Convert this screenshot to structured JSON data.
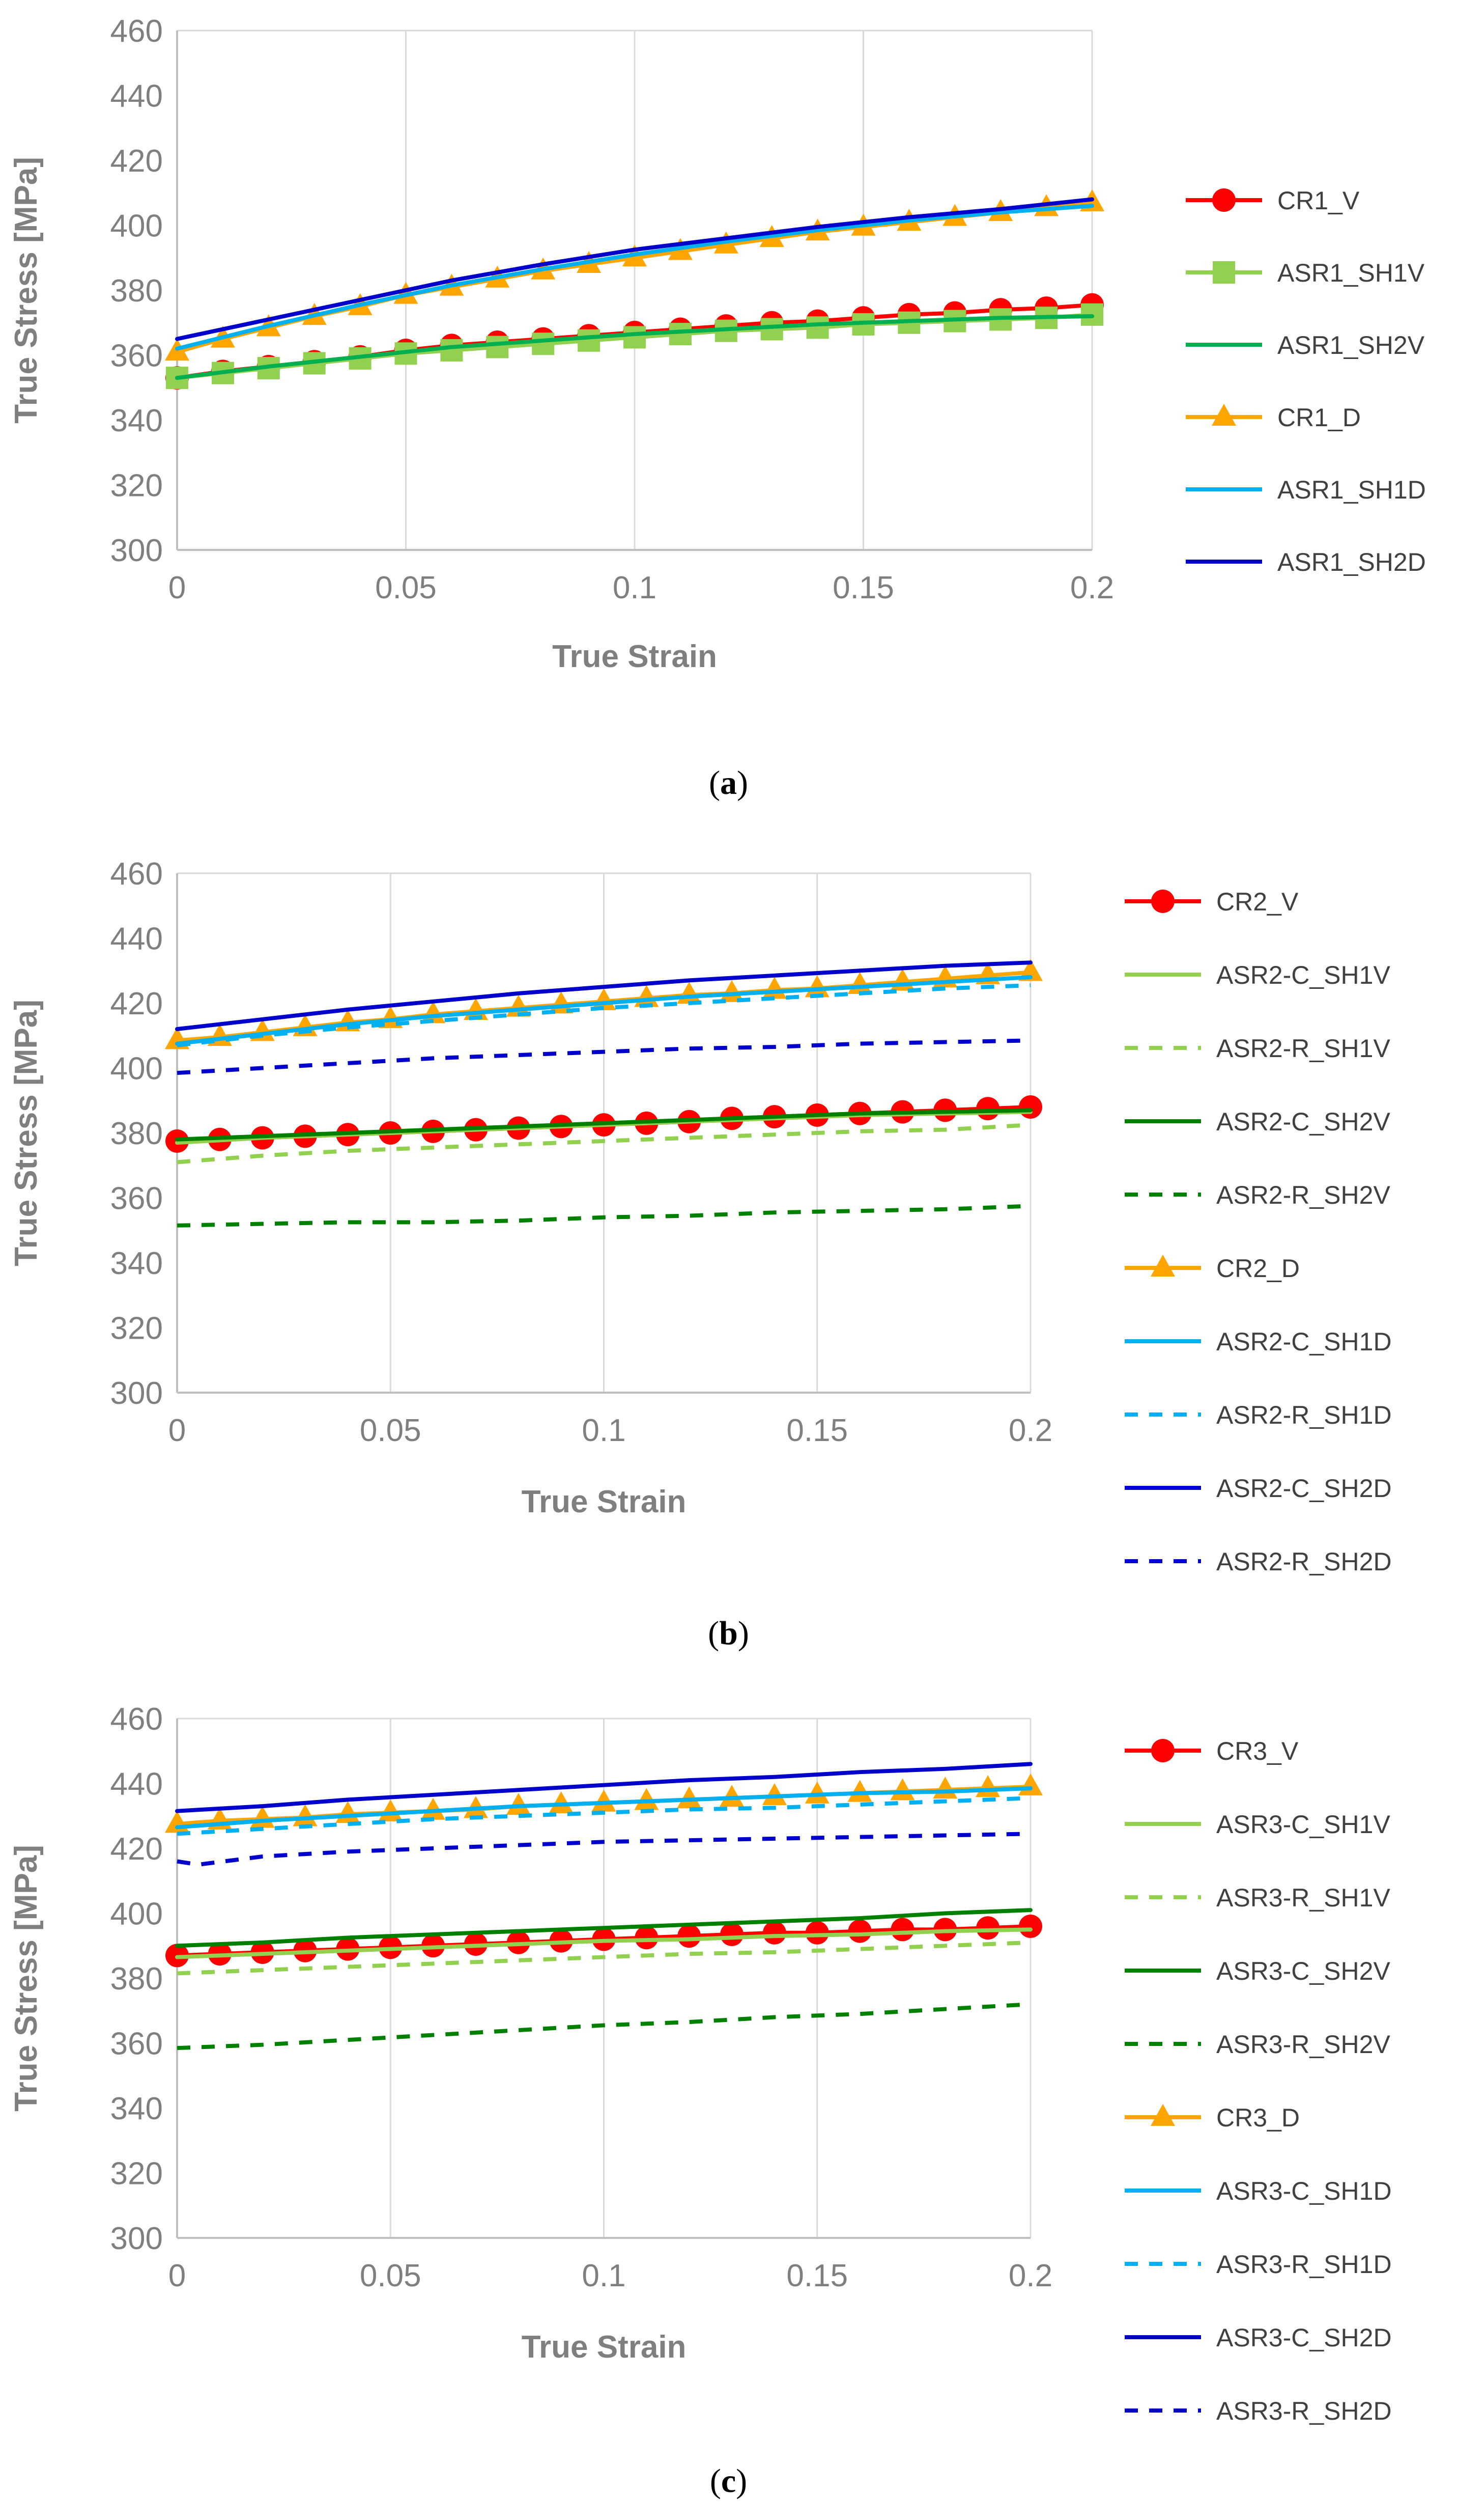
{
  "chart_data": [
    {
      "type": "line",
      "panel_label": "a",
      "xlabel": "True Strain",
      "ylabel": "True Stress [MPa]",
      "xlim": [
        0,
        0.2
      ],
      "ylim": [
        300,
        460
      ],
      "x_ticks": [
        "0",
        "0.05",
        "0.1",
        "0.15",
        "0.2"
      ],
      "y_ticks": [
        "300",
        "320",
        "340",
        "360",
        "380",
        "400",
        "420",
        "440",
        "460"
      ],
      "grid": "vertical",
      "legend_position": "right",
      "series": [
        {
          "name": "CR1_V",
          "color": "#ff0000",
          "dash": "solid",
          "marker": "circle",
          "x": [
            0,
            0.01,
            0.02,
            0.03,
            0.04,
            0.05,
            0.06,
            0.07,
            0.08,
            0.09,
            0.1,
            0.11,
            0.12,
            0.13,
            0.14,
            0.15,
            0.16,
            0.17,
            0.18,
            0.19,
            0.2
          ],
          "y": [
            353,
            355,
            356.5,
            358,
            359.5,
            361.5,
            363,
            364,
            365,
            366,
            367,
            368,
            369,
            370,
            370.5,
            371.5,
            372.5,
            373,
            374,
            374.5,
            375.5
          ]
        },
        {
          "name": "ASR1_SH1V",
          "color": "#92d050",
          "dash": "solid",
          "marker": "square",
          "x": [
            0,
            0.01,
            0.02,
            0.03,
            0.04,
            0.05,
            0.06,
            0.07,
            0.08,
            0.09,
            0.1,
            0.11,
            0.12,
            0.13,
            0.14,
            0.15,
            0.16,
            0.17,
            0.18,
            0.19,
            0.2
          ],
          "y": [
            353,
            354.5,
            356,
            357.5,
            359,
            360.5,
            361.5,
            362.5,
            363.5,
            364.5,
            365.5,
            366.5,
            367.5,
            368,
            368.5,
            369.5,
            370,
            370.5,
            371,
            371.5,
            372.5
          ]
        },
        {
          "name": "ASR1_SH2V",
          "color": "#00b050",
          "dash": "solid",
          "marker": "none",
          "x": [
            0,
            0.02,
            0.04,
            0.06,
            0.08,
            0.1,
            0.12,
            0.14,
            0.16,
            0.18,
            0.2
          ],
          "y": [
            353,
            356.5,
            359.5,
            362.5,
            364.5,
            366.5,
            368,
            369.5,
            370.5,
            371.5,
            372
          ]
        },
        {
          "name": "CR1_D",
          "color": "#ffa500",
          "dash": "solid",
          "marker": "triangle",
          "x": [
            0,
            0.01,
            0.02,
            0.03,
            0.04,
            0.05,
            0.06,
            0.07,
            0.08,
            0.09,
            0.1,
            0.11,
            0.12,
            0.13,
            0.14,
            0.15,
            0.16,
            0.17,
            0.18,
            0.19,
            0.2
          ],
          "y": [
            361,
            365,
            368.5,
            372,
            375,
            378.5,
            381,
            383.5,
            386,
            388,
            390,
            392,
            394,
            396,
            398,
            399.5,
            401,
            402.5,
            404,
            405.5,
            407
          ]
        },
        {
          "name": "ASR1_SH1D",
          "color": "#00b0f0",
          "dash": "solid",
          "marker": "none",
          "x": [
            0,
            0.02,
            0.04,
            0.06,
            0.08,
            0.1,
            0.12,
            0.14,
            0.16,
            0.18,
            0.2
          ],
          "y": [
            362,
            369,
            375.5,
            381.5,
            386.5,
            391,
            395,
            398.5,
            401.5,
            404,
            406
          ]
        },
        {
          "name": "ASR1_SH2D",
          "color": "#0000cd",
          "dash": "solid",
          "marker": "none",
          "x": [
            0,
            0.02,
            0.04,
            0.06,
            0.08,
            0.1,
            0.12,
            0.14,
            0.16,
            0.18,
            0.2
          ],
          "y": [
            365,
            371,
            377,
            383,
            388,
            392.5,
            396,
            399.5,
            402.5,
            405,
            408
          ]
        }
      ]
    },
    {
      "type": "line",
      "panel_label": "b",
      "xlabel": "True Strain",
      "ylabel": "True Stress [MPa]",
      "xlim": [
        0,
        0.2
      ],
      "ylim": [
        300,
        460
      ],
      "x_ticks": [
        "0",
        "0.05",
        "0.1",
        "0.15",
        "0.2"
      ],
      "y_ticks": [
        "300",
        "320",
        "340",
        "360",
        "380",
        "400",
        "420",
        "440",
        "460"
      ],
      "grid": "vertical",
      "legend_position": "right",
      "series": [
        {
          "name": "CR2_V",
          "color": "#ff0000",
          "dash": "solid",
          "marker": "circle",
          "x": [
            0,
            0.01,
            0.02,
            0.03,
            0.04,
            0.05,
            0.06,
            0.07,
            0.08,
            0.09,
            0.1,
            0.11,
            0.12,
            0.13,
            0.14,
            0.15,
            0.16,
            0.17,
            0.18,
            0.19,
            0.2
          ],
          "y": [
            377.5,
            378,
            378.5,
            379,
            379.5,
            380,
            380.5,
            381,
            381.5,
            382,
            382.5,
            383,
            383.5,
            384.5,
            385,
            385.5,
            386,
            386.5,
            387,
            387.5,
            388
          ]
        },
        {
          "name": "ASR2-C_SH1V",
          "color": "#92d050",
          "dash": "solid",
          "marker": "none",
          "x": [
            0,
            0.02,
            0.04,
            0.06,
            0.08,
            0.1,
            0.12,
            0.14,
            0.16,
            0.18,
            0.2
          ],
          "y": [
            377,
            378.5,
            379.5,
            380.5,
            381.5,
            382.5,
            383.5,
            384.5,
            385.5,
            386,
            386.5
          ]
        },
        {
          "name": "ASR2-R_SH1V",
          "color": "#92d050",
          "dash": "dashed",
          "marker": "none",
          "x": [
            0,
            0.02,
            0.04,
            0.06,
            0.08,
            0.1,
            0.12,
            0.14,
            0.16,
            0.18,
            0.2
          ],
          "y": [
            371,
            373,
            374.5,
            375.5,
            376.5,
            377.5,
            378.5,
            379.5,
            380.5,
            381,
            382.5
          ]
        },
        {
          "name": "ASR2-C_SH2V",
          "color": "#008000",
          "dash": "solid",
          "marker": "none",
          "x": [
            0,
            0.02,
            0.04,
            0.06,
            0.08,
            0.1,
            0.12,
            0.14,
            0.16,
            0.18,
            0.2
          ],
          "y": [
            378,
            379,
            380,
            381,
            382,
            383,
            384,
            385,
            386,
            386.5,
            387
          ]
        },
        {
          "name": "ASR2-R_SH2V",
          "color": "#008000",
          "dash": "dashed",
          "marker": "none",
          "x": [
            0,
            0.02,
            0.04,
            0.06,
            0.08,
            0.1,
            0.12,
            0.14,
            0.16,
            0.18,
            0.2
          ],
          "y": [
            351.5,
            352,
            352.5,
            352.5,
            353,
            354,
            354.5,
            355.5,
            356,
            356.5,
            357.5
          ]
        },
        {
          "name": "CR2_D",
          "color": "#ffa500",
          "dash": "solid",
          "marker": "triangle",
          "x": [
            0,
            0.01,
            0.02,
            0.03,
            0.04,
            0.05,
            0.06,
            0.07,
            0.08,
            0.09,
            0.1,
            0.11,
            0.12,
            0.13,
            0.14,
            0.15,
            0.16,
            0.17,
            0.18,
            0.19,
            0.2
          ],
          "y": [
            408.5,
            409.5,
            411,
            412.5,
            414,
            415,
            416.5,
            417.5,
            418.5,
            419.5,
            420.5,
            421.5,
            422.5,
            423,
            424,
            424.5,
            425.5,
            426.5,
            427.5,
            428.5,
            429.5
          ]
        },
        {
          "name": "ASR2-C_SH1D",
          "color": "#00b0f0",
          "dash": "solid",
          "marker": "none",
          "x": [
            0,
            0.02,
            0.04,
            0.06,
            0.08,
            0.1,
            0.12,
            0.14,
            0.16,
            0.18,
            0.2
          ],
          "y": [
            407.5,
            410.5,
            413.5,
            416,
            418,
            420,
            422,
            423.5,
            425,
            426.5,
            428
          ]
        },
        {
          "name": "ASR2-R_SH1D",
          "color": "#00b0f0",
          "dash": "dashed",
          "marker": "none",
          "x": [
            0,
            0.02,
            0.04,
            0.06,
            0.08,
            0.1,
            0.12,
            0.14,
            0.16,
            0.18,
            0.2
          ],
          "y": [
            407,
            410,
            412.5,
            414.5,
            416.5,
            418.5,
            420,
            421.5,
            423,
            424.5,
            425.5
          ]
        },
        {
          "name": "ASR2-C_SH2D",
          "color": "#0000cd",
          "dash": "solid",
          "marker": "none",
          "x": [
            0,
            0.02,
            0.04,
            0.06,
            0.08,
            0.1,
            0.12,
            0.14,
            0.16,
            0.18,
            0.2
          ],
          "y": [
            412,
            415,
            418,
            420.5,
            423,
            425,
            427,
            428.5,
            430,
            431.5,
            432.5
          ]
        },
        {
          "name": "ASR2-R_SH2D",
          "color": "#0000cd",
          "dash": "dashed",
          "marker": "none",
          "x": [
            0,
            0.02,
            0.04,
            0.06,
            0.08,
            0.1,
            0.12,
            0.14,
            0.16,
            0.18,
            0.2
          ],
          "y": [
            398.5,
            400,
            401.5,
            403,
            404,
            405,
            406,
            406.5,
            407.5,
            408,
            408.5
          ]
        }
      ]
    },
    {
      "type": "line",
      "panel_label": "c",
      "xlabel": "True Strain",
      "ylabel": "True Stress [MPa]",
      "xlim": [
        0,
        0.2
      ],
      "ylim": [
        300,
        460
      ],
      "x_ticks": [
        "0",
        "0.05",
        "0.1",
        "0.15",
        "0.2"
      ],
      "y_ticks": [
        "300",
        "320",
        "340",
        "360",
        "380",
        "400",
        "420",
        "440",
        "460"
      ],
      "grid": "vertical",
      "legend_position": "right",
      "series": [
        {
          "name": "CR3_V",
          "color": "#ff0000",
          "dash": "solid",
          "marker": "circle",
          "x": [
            0,
            0.01,
            0.02,
            0.03,
            0.04,
            0.05,
            0.06,
            0.07,
            0.08,
            0.09,
            0.1,
            0.11,
            0.12,
            0.13,
            0.14,
            0.15,
            0.16,
            0.17,
            0.18,
            0.19,
            0.2
          ],
          "y": [
            387,
            387.5,
            388,
            388.5,
            389,
            389.5,
            390,
            390.5,
            391,
            391.5,
            392,
            392.5,
            393,
            393.5,
            394,
            394,
            394.5,
            395,
            395,
            395.5,
            396
          ]
        },
        {
          "name": "ASR3-C_SH1V",
          "color": "#92d050",
          "dash": "solid",
          "marker": "none",
          "x": [
            0,
            0.02,
            0.04,
            0.06,
            0.08,
            0.1,
            0.12,
            0.14,
            0.16,
            0.18,
            0.2
          ],
          "y": [
            386.5,
            387.5,
            388.5,
            389.5,
            390.5,
            391.5,
            392,
            393,
            393.5,
            394.5,
            395
          ]
        },
        {
          "name": "ASR3-R_SH1V",
          "color": "#92d050",
          "dash": "dashed",
          "marker": "none",
          "x": [
            0,
            0.02,
            0.04,
            0.06,
            0.08,
            0.1,
            0.12,
            0.14,
            0.16,
            0.18,
            0.2
          ],
          "y": [
            381.5,
            382.5,
            383.5,
            384.5,
            385.5,
            386.5,
            387.5,
            388,
            389,
            390,
            391
          ]
        },
        {
          "name": "ASR3-C_SH2V",
          "color": "#008000",
          "dash": "solid",
          "marker": "none",
          "x": [
            0,
            0.02,
            0.04,
            0.06,
            0.08,
            0.1,
            0.12,
            0.14,
            0.16,
            0.18,
            0.2
          ],
          "y": [
            390,
            391,
            392.5,
            393.5,
            394.5,
            395.5,
            396.5,
            397.5,
            398.5,
            400,
            401
          ]
        },
        {
          "name": "ASR3-R_SH2V",
          "color": "#008000",
          "dash": "dashed",
          "marker": "none",
          "x": [
            0,
            0.02,
            0.04,
            0.06,
            0.08,
            0.1,
            0.12,
            0.14,
            0.16,
            0.18,
            0.2
          ],
          "y": [
            358.5,
            359.5,
            361,
            362.5,
            364,
            365.5,
            366.5,
            368,
            369,
            370.5,
            372
          ]
        },
        {
          "name": "CR3_D",
          "color": "#ffa500",
          "dash": "solid",
          "marker": "triangle",
          "x": [
            0,
            0.01,
            0.02,
            0.03,
            0.04,
            0.05,
            0.06,
            0.07,
            0.08,
            0.09,
            0.1,
            0.11,
            0.12,
            0.13,
            0.14,
            0.15,
            0.16,
            0.17,
            0.18,
            0.19,
            0.2
          ],
          "y": [
            427.5,
            428.5,
            429,
            429.5,
            430.5,
            431,
            431.5,
            432,
            433,
            433.5,
            434,
            434.5,
            435,
            435.5,
            436,
            436.5,
            437,
            437.5,
            438,
            438.5,
            439
          ]
        },
        {
          "name": "ASR3-C_SH1D",
          "color": "#00b0f0",
          "dash": "solid",
          "marker": "none",
          "x": [
            0,
            0.02,
            0.04,
            0.06,
            0.08,
            0.1,
            0.12,
            0.14,
            0.16,
            0.18,
            0.2
          ],
          "y": [
            426.5,
            428.5,
            430,
            431.5,
            433,
            434,
            435,
            436,
            437,
            437.5,
            438.5
          ]
        },
        {
          "name": "ASR3-R_SH1D",
          "color": "#00b0f0",
          "dash": "dashed",
          "marker": "none",
          "x": [
            0,
            0.02,
            0.04,
            0.06,
            0.08,
            0.1,
            0.12,
            0.14,
            0.16,
            0.18,
            0.2
          ],
          "y": [
            424.5,
            426,
            427.5,
            429,
            430,
            431,
            432,
            432.5,
            433.5,
            434.5,
            435.5
          ]
        },
        {
          "name": "ASR3-C_SH2D",
          "color": "#0000cd",
          "dash": "solid",
          "marker": "none",
          "x": [
            0,
            0.02,
            0.04,
            0.06,
            0.08,
            0.1,
            0.12,
            0.14,
            0.16,
            0.18,
            0.2
          ],
          "y": [
            431.5,
            433,
            435,
            436.5,
            438,
            439.5,
            441,
            442,
            443.5,
            444.5,
            446
          ]
        },
        {
          "name": "ASR3-R_SH2D",
          "color": "#0000cd",
          "dash": "dashed",
          "marker": "none",
          "x": [
            0,
            0.005,
            0.02,
            0.04,
            0.06,
            0.08,
            0.1,
            0.12,
            0.14,
            0.16,
            0.18,
            0.2
          ],
          "y": [
            416,
            415,
            417.5,
            419,
            420,
            421,
            422,
            422.5,
            423,
            423.5,
            424,
            424.5
          ]
        }
      ]
    }
  ]
}
